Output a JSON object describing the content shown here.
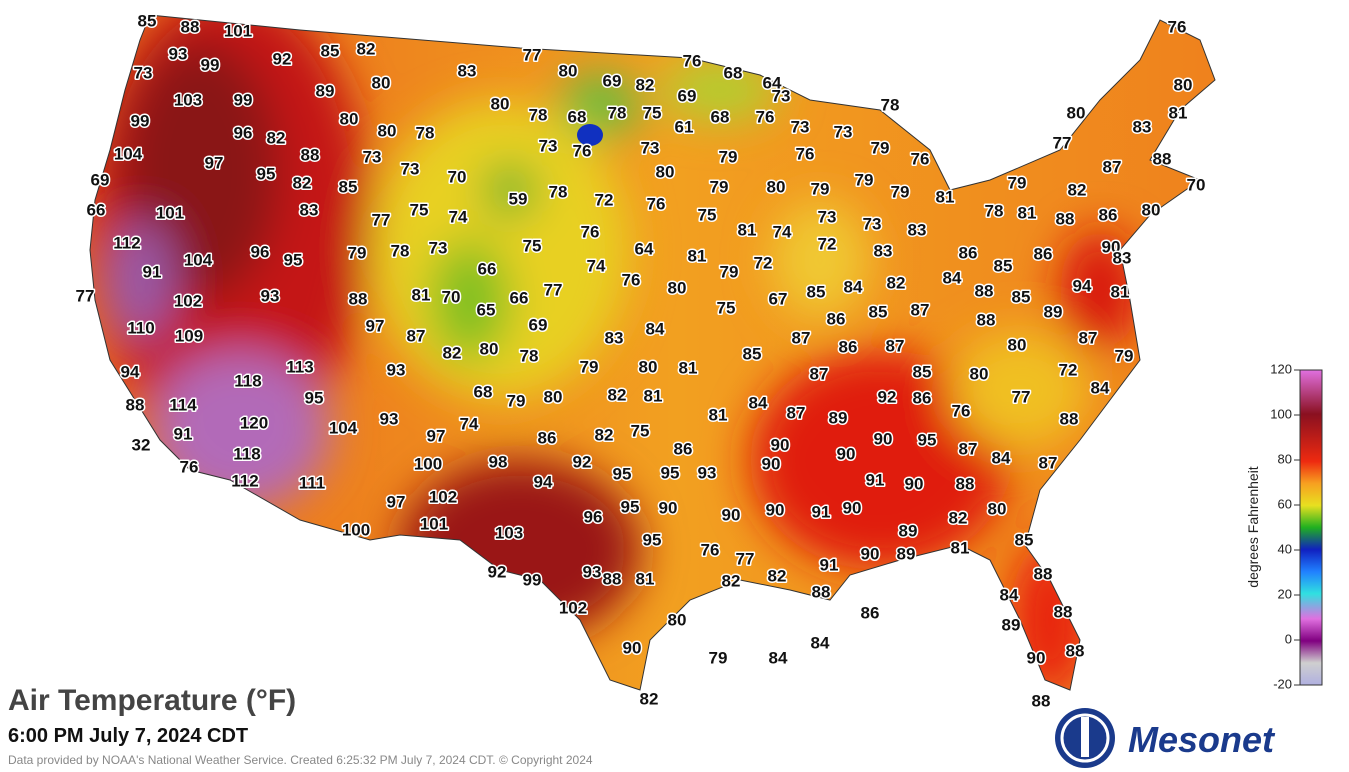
{
  "title": "Air Temperature (°F)",
  "timestamp": "6:00 PM July 7, 2024 CDT",
  "credit": "Data provided by NOAA's National Weather Service. Created 6:25:32 PM July 7, 2024 CDT. © Copyright 2024",
  "logo": "Mesonet",
  "legend": {
    "label": "degrees Fahrenheit",
    "range": [
      -20,
      120
    ],
    "ticks": [
      120,
      100,
      80,
      60,
      40,
      20,
      0,
      -20
    ]
  },
  "stations": [
    85,
    88,
    101,
    93,
    99,
    73,
    92,
    85,
    82,
    77,
    76,
    76,
    83,
    80,
    69,
    82,
    68,
    64,
    80,
    89,
    80,
    103,
    99,
    73,
    78,
    69,
    80,
    78,
    68,
    78,
    75,
    80,
    81,
    99,
    80,
    80,
    78,
    61,
    68,
    76,
    73,
    73,
    83,
    96,
    82,
    77,
    104,
    97,
    88,
    73,
    73,
    76,
    73,
    79,
    76,
    79,
    76,
    87,
    88,
    69,
    95,
    82,
    85,
    73,
    70,
    80,
    79,
    80,
    79,
    79,
    79,
    81,
    79,
    82,
    70,
    66,
    101,
    83,
    77,
    75,
    74,
    59,
    78,
    72,
    76,
    75,
    73,
    73,
    83,
    78,
    81,
    88,
    86,
    80,
    112,
    81,
    74,
    72,
    90,
    96,
    95,
    104,
    79,
    78,
    73,
    75,
    76,
    64,
    81,
    79,
    72,
    83,
    86,
    85,
    86,
    83,
    91,
    66,
    74,
    76,
    82,
    84,
    77,
    102,
    93,
    88,
    81,
    70,
    66,
    77,
    80,
    75,
    67,
    85,
    84,
    88,
    85,
    94,
    81,
    65,
    110,
    109,
    97,
    87,
    69,
    83,
    84,
    86,
    85,
    87,
    88,
    89,
    82,
    80,
    78,
    87,
    86,
    87,
    85,
    80,
    87,
    79,
    94,
    118,
    113,
    93,
    79,
    80,
    81,
    87,
    85,
    80,
    72,
    84,
    88,
    114,
    95,
    68,
    79,
    80,
    82,
    81,
    84,
    92,
    86,
    77,
    120,
    104,
    93,
    74,
    97,
    86,
    82,
    75,
    81,
    87,
    89,
    76,
    88,
    91,
    32,
    90,
    90,
    90,
    95,
    87,
    84,
    87,
    86,
    118,
    100,
    98,
    92,
    95,
    95,
    93,
    90,
    76,
    112,
    111,
    94,
    91,
    90,
    88,
    97,
    102,
    95,
    90,
    96,
    90,
    90,
    91,
    90,
    82,
    80,
    100,
    101,
    103,
    89,
    95,
    85,
    76,
    77,
    90,
    89,
    81,
    92,
    99,
    93,
    88,
    81,
    82,
    82,
    91,
    88,
    88,
    102,
    86,
    84,
    88,
    80,
    89,
    90,
    79,
    84,
    84,
    90,
    88,
    82,
    88
  ]
}
